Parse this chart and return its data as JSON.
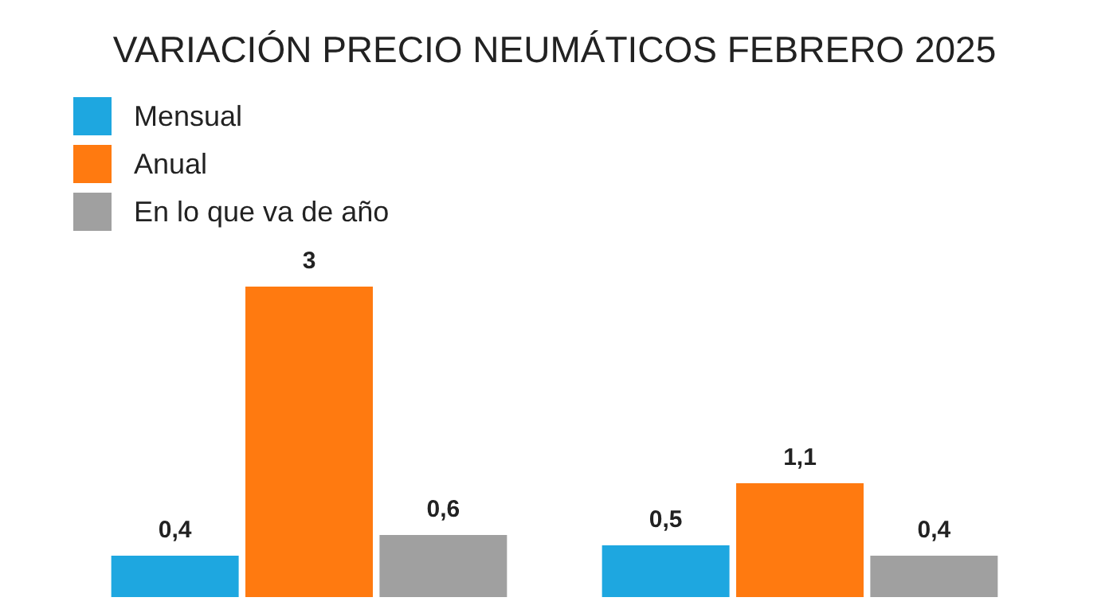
{
  "chart_data": {
    "type": "bar",
    "title": "VARIACIÓN PRECIO NEUMÁTICOS FEBRERO 2025",
    "categories": [
      null,
      null
    ],
    "series": [
      {
        "name": "Mensual",
        "color": "#1ea7e0",
        "values": [
          0.4,
          0.5
        ],
        "value_labels": [
          "0,4",
          "0,5"
        ]
      },
      {
        "name": "Anual",
        "color": "#ff7a10",
        "values": [
          3,
          1.1
        ],
        "value_labels": [
          "3",
          "1,1"
        ]
      },
      {
        "name": "En lo que va de año",
        "color": "#a0a0a0",
        "values": [
          0.6,
          0.4
        ],
        "value_labels": [
          "0,6",
          "0,4"
        ]
      }
    ],
    "legend": "top left"
  }
}
